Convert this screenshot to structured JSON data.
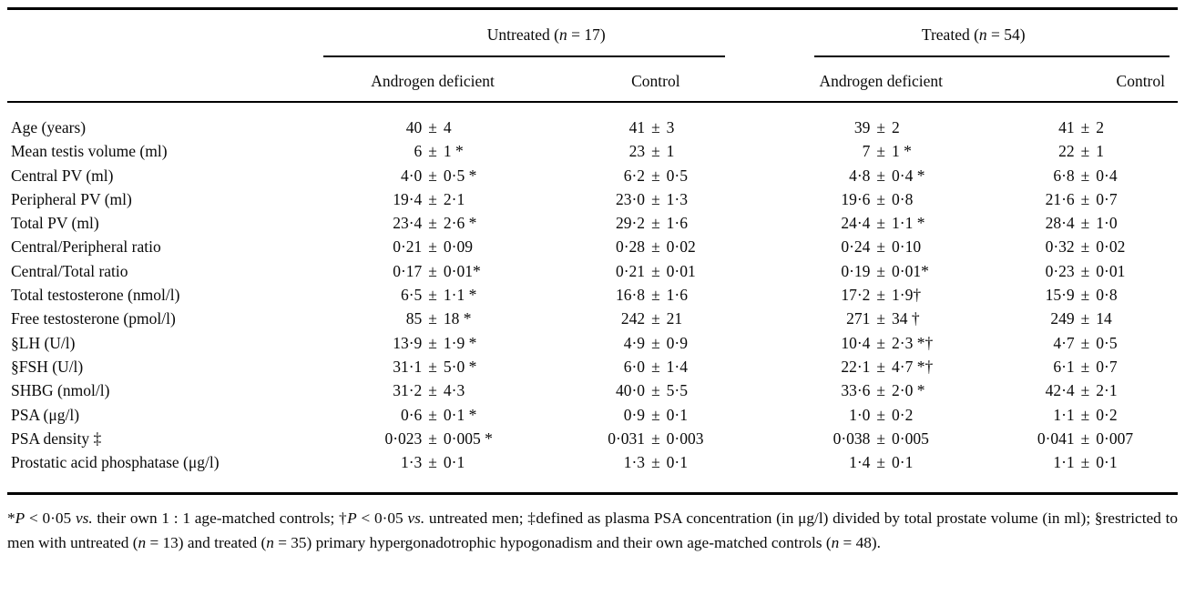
{
  "page": {
    "background_color": "#ffffff",
    "text_color": "#0a0a0a",
    "rule_color": "#000000"
  },
  "table": {
    "groups": [
      {
        "name": "untreated",
        "title_text": "Untreated (n = 17)",
        "title_segments": [
          {
            "t": "Untreated ("
          },
          {
            "t": "n",
            "i": true
          },
          {
            "t": " = 17)"
          }
        ]
      },
      {
        "name": "treated",
        "title_text": "Treated (n = 54)",
        "title_segments": [
          {
            "t": "Treated ("
          },
          {
            "t": "n",
            "i": true
          },
          {
            "t": " = 54)"
          }
        ]
      }
    ],
    "sub_headers": [
      "Androgen deficient",
      "Control",
      "Androgen deficient",
      "Control"
    ],
    "rows": [
      {
        "label": "Age (years)",
        "values": [
          "40 ± 4",
          "41 ± 3",
          "39 ± 2",
          "41 ± 2"
        ]
      },
      {
        "label": "Mean testis volume (ml)",
        "values": [
          "6 ± 1 *",
          "23 ± 1",
          "7 ± 1 *",
          "22 ± 1"
        ]
      },
      {
        "label": "Central PV (ml)",
        "values": [
          "4·0 ± 0·5 *",
          "6·2 ± 0·5",
          "4·8 ± 0·4 *",
          "6·8 ± 0·4"
        ]
      },
      {
        "label": "Peripheral PV (ml)",
        "values": [
          "19·4 ± 2·1",
          "23·0 ± 1·3",
          "19·6 ± 0·8",
          "21·6 ± 0·7"
        ]
      },
      {
        "label": "Total PV (ml)",
        "values": [
          "23·4 ± 2·6 *",
          "29·2 ± 1·6",
          "24·4 ± 1·1 *",
          "28·4 ± 1·0"
        ]
      },
      {
        "label": "Central/Peripheral ratio",
        "values": [
          "0·21 ± 0·09",
          "0·28 ± 0·02",
          "0·24 ± 0·10",
          "0·32 ± 0·02"
        ]
      },
      {
        "label": "Central/Total ratio",
        "values": [
          "0·17 ± 0·01*",
          "0·21 ± 0·01",
          "0·19 ± 0·01*",
          "0·23 ± 0·01"
        ]
      },
      {
        "label": "Total testosterone (nmol/l)",
        "values": [
          "6·5 ± 1·1 *",
          "16·8 ± 1·6",
          "17·2 ± 1·9†",
          "15·9 ± 0·8"
        ]
      },
      {
        "label": "Free testosterone (pmol/l)",
        "values": [
          "85 ± 18 *",
          "242 ± 21",
          "271 ± 34 †",
          "249 ± 14"
        ]
      },
      {
        "label": "§LH (U/l)",
        "values": [
          "13·9 ± 1·9 *",
          "4·9 ± 0·9",
          "10·4 ± 2·3 *†",
          "4·7 ± 0·5"
        ]
      },
      {
        "label": "§FSH (U/l)",
        "values": [
          "31·1 ± 5·0 *",
          "6·0 ± 1·4",
          "22·1 ± 4·7 *†",
          "6·1 ± 0·7"
        ]
      },
      {
        "label": "SHBG (nmol/l)",
        "values": [
          "31·2 ± 4·3",
          "40·0 ± 5·5",
          "33·6 ± 2·0 *",
          "42·4 ± 2·1"
        ]
      },
      {
        "label": "PSA (μg/l)",
        "values": [
          "0·6 ± 0·1 *",
          "0·9 ± 0·1",
          "1·0 ± 0·2",
          "1·1 ± 0·2"
        ]
      },
      {
        "label": "PSA density ‡",
        "values": [
          "0·023 ± 0·005 *",
          "0·031 ± 0·003",
          "0·038 ± 0·005",
          "0·041 ± 0·007"
        ]
      },
      {
        "label": "Prostatic acid phosphatase (μg/l)",
        "values": [
          "1·3 ± 0·1",
          "1·3 ± 0·1",
          "1·4 ± 0·1",
          "1·1 ± 0·1"
        ]
      }
    ]
  },
  "footnote": {
    "full_text": "*P < 0·05 vs. their own 1 : 1 age-matched controls; †P < 0·05 vs. untreated men; ‡defined as plasma PSA concentration (in μg/l) divided by total prostate volume (in ml); §restricted to men with untreated (n = 13) and treated (n = 35) primary hypergonadotrophic hypogonadism and their own age-matched controls (n = 48).",
    "segments": [
      {
        "t": "*"
      },
      {
        "t": "P",
        "i": true
      },
      {
        "t": " < 0·05 "
      },
      {
        "t": "vs.",
        "i": true
      },
      {
        "t": " their own 1 : 1 age-matched controls; †"
      },
      {
        "t": "P",
        "i": true
      },
      {
        "t": " < 0·05 "
      },
      {
        "t": "vs.",
        "i": true
      },
      {
        "t": " untreated men; ‡defined as plasma PSA concentration (in μg/l) divided by total prostate volume (in ml); §restricted to men with untreated ("
      },
      {
        "t": "n",
        "i": true
      },
      {
        "t": " = 13) and treated ("
      },
      {
        "t": "n",
        "i": true
      },
      {
        "t": " = 35) primary hypergonadotrophic hypogonadism and their own age-matched controls ("
      },
      {
        "t": "n",
        "i": true
      },
      {
        "t": " = 48)."
      }
    ]
  }
}
